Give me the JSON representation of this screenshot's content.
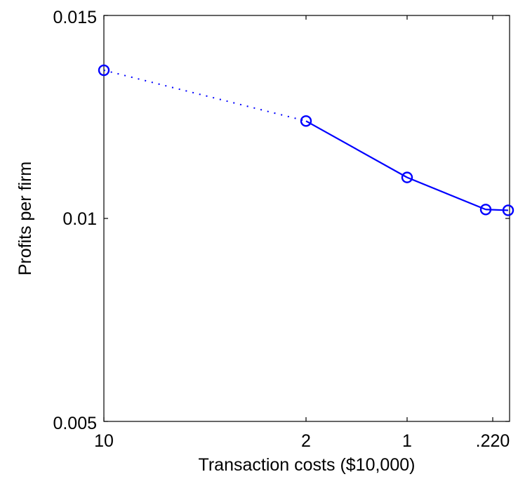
{
  "chart_data": {
    "type": "line",
    "title": "",
    "xlabel": "Transaction costs ($10,000)",
    "ylabel": "Profits per firm",
    "x_ticks": [
      "10",
      "2",
      "1",
      ".220"
    ],
    "y_ticks": [
      "0.015",
      "0.01",
      "0.005"
    ],
    "ylim": [
      0.005,
      0.015
    ],
    "grid": false,
    "legend": "none",
    "series": [
      {
        "color": "#0000ff",
        "marker": "circle",
        "points": [
          {
            "x": "10",
            "y": 0.01365
          },
          {
            "x": "2",
            "y": 0.0124
          },
          {
            "x": "1",
            "y": 0.01101
          },
          {
            "x": ".2",
            "y": 0.01022
          },
          {
            "x": ".1",
            "y": 0.0102
          }
        ],
        "segments": [
          {
            "from": 0,
            "to": 1,
            "style": "dotted"
          },
          {
            "from": 1,
            "to": 2,
            "style": "solid"
          },
          {
            "from": 2,
            "to": 3,
            "style": "solid"
          },
          {
            "from": 3,
            "to": 4,
            "style": "solid"
          }
        ]
      }
    ]
  }
}
